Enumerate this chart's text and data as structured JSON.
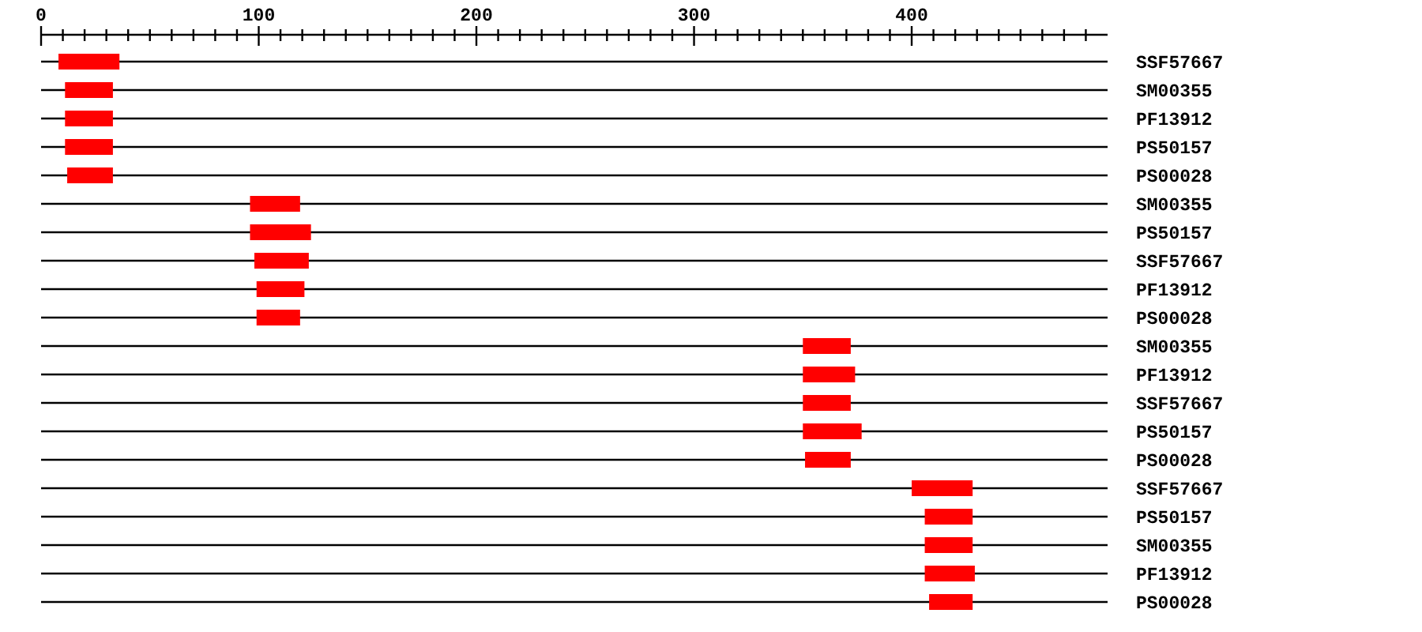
{
  "chart_data": {
    "type": "bar",
    "orientation": "horizontal",
    "categories": [
      "SSF57667",
      "SM00355",
      "PF13912",
      "PS50157",
      "PS00028",
      "SM00355",
      "PS50157",
      "SSF57667",
      "PF13912",
      "PS00028",
      "SM00355",
      "PF13912",
      "SSF57667",
      "PS50157",
      "PS00028",
      "SSF57667",
      "PS50157",
      "SM00355",
      "PF13912",
      "PS00028"
    ],
    "base": [
      8,
      11,
      11,
      11,
      12,
      96,
      96,
      98,
      99,
      99,
      350,
      350,
      350,
      350,
      351,
      400,
      406,
      406,
      406,
      408
    ],
    "values": [
      28,
      22,
      22,
      22,
      21,
      23,
      28,
      25,
      22,
      20,
      22,
      24,
      22,
      27,
      21,
      28,
      22,
      22,
      23,
      20
    ],
    "color": "#ff0000",
    "xlim": [
      0,
      490
    ],
    "xticks": [
      0,
      {
        "value": 10,
        "label": null
      },
      {
        "value": 20,
        "label": null
      },
      {
        "value": 30,
        "label": null
      },
      {
        "value": 40,
        "label": null
      },
      {
        "value": 50,
        "label": null
      },
      {
        "value": 60,
        "label": null
      },
      {
        "value": 70,
        "label": null
      },
      {
        "value": 80,
        "label": null
      },
      {
        "value": 90,
        "label": null
      },
      100,
      {
        "value": 110,
        "label": null
      },
      {
        "value": 120,
        "label": null
      },
      {
        "value": 130,
        "label": null
      },
      {
        "value": 140,
        "label": null
      },
      {
        "value": 150,
        "label": null
      },
      {
        "value": 160,
        "label": null
      },
      {
        "value": 170,
        "label": null
      },
      {
        "value": 180,
        "label": null
      },
      {
        "value": 190,
        "label": null
      },
      200,
      {
        "value": 210,
        "label": null
      },
      {
        "value": 220,
        "label": null
      },
      {
        "value": 230,
        "label": null
      },
      {
        "value": 240,
        "label": null
      },
      {
        "value": 250,
        "label": null
      },
      {
        "value": 260,
        "label": null
      },
      {
        "value": 270,
        "label": null
      },
      {
        "value": 280,
        "label": null
      },
      {
        "value": 290,
        "label": null
      },
      300,
      {
        "value": 310,
        "label": null
      },
      {
        "value": 320,
        "label": null
      },
      {
        "value": 330,
        "label": null
      },
      {
        "value": 340,
        "label": null
      },
      {
        "value": 350,
        "label": null
      },
      {
        "value": 360,
        "label": null
      },
      {
        "value": 370,
        "label": null
      },
      {
        "value": 380,
        "label": null
      },
      {
        "value": 390,
        "label": null
      },
      400,
      {
        "value": 410,
        "label": null
      },
      {
        "value": 420,
        "label": null
      },
      {
        "value": 430,
        "label": null
      },
      {
        "value": 440,
        "label": null
      },
      {
        "value": 450,
        "label": null
      },
      {
        "value": 460,
        "label": null
      },
      {
        "value": 470,
        "label": null
      },
      {
        "value": 480,
        "label": null
      }
    ],
    "grid": "y"
  }
}
